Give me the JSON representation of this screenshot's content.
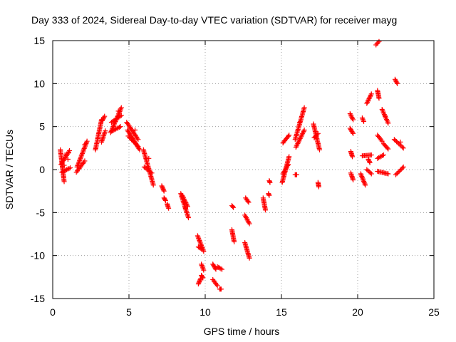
{
  "chart_data": {
    "type": "scatter",
    "title": "Day 333 of 2024, Sidereal Day-to-day VTEC variation (SDTVAR) for receiver mayg",
    "xlabel": "GPS time / hours",
    "ylabel": "SDTVAR / TECUs",
    "xlim": [
      0,
      25
    ],
    "ylim": [
      -15,
      15
    ],
    "xticks": [
      "0",
      "5",
      "10",
      "15",
      "20",
      "25"
    ],
    "yticks": [
      "-15",
      "-10",
      "-5",
      "0",
      "5",
      "10",
      "15"
    ],
    "grid": true,
    "marker": "plus",
    "series_color": "#ff0000",
    "segments": [
      {
        "x0": 0.5,
        "x1": 0.75,
        "y0": 2.3,
        "y1": -1.4
      },
      {
        "x0": 0.55,
        "x1": 1.1,
        "y0": 0.6,
        "y1": 2.2
      },
      {
        "x0": 0.6,
        "x1": 1.15,
        "y0": -0.3,
        "y1": 0.2
      },
      {
        "x0": 1.6,
        "x1": 2.25,
        "y0": 0.3,
        "y1": 3.3
      },
      {
        "x0": 1.55,
        "x1": 2.1,
        "y0": -0.3,
        "y1": 1.0
      },
      {
        "x0": 2.8,
        "x1": 3.2,
        "y0": 2.3,
        "y1": 5.8
      },
      {
        "x0": 3.25,
        "x1": 3.4,
        "y0": 5.7,
        "y1": 6.2
      },
      {
        "x0": 3.2,
        "x1": 3.45,
        "y0": 3.2,
        "y1": 4.5
      },
      {
        "x0": 3.8,
        "x1": 4.5,
        "y0": 4.3,
        "y1": 7.2
      },
      {
        "x0": 3.85,
        "x1": 4.5,
        "y0": 5.5,
        "y1": 6.3
      },
      {
        "x0": 3.9,
        "x1": 4.45,
        "y0": 4.5,
        "y1": 5.0
      },
      {
        "x0": 4.85,
        "x1": 5.6,
        "y0": 5.5,
        "y1": 3.5
      },
      {
        "x0": 4.9,
        "x1": 5.7,
        "y0": 4.6,
        "y1": 2.3
      },
      {
        "x0": 4.95,
        "x1": 5.6,
        "y0": 3.9,
        "y1": 2.7
      },
      {
        "x0": 5.95,
        "x1": 6.6,
        "y0": 2.3,
        "y1": -1.8
      },
      {
        "x0": 6.0,
        "x1": 6.5,
        "y0": 0.3,
        "y1": -0.4
      },
      {
        "x0": 7.15,
        "x1": 7.3,
        "y0": -1.9,
        "y1": -2.5
      },
      {
        "x0": 7.3,
        "x1": 7.4,
        "y0": -3.3,
        "y1": -3.6
      },
      {
        "x0": 7.5,
        "x1": 7.6,
        "y0": -4.0,
        "y1": -4.5
      },
      {
        "x0": 8.4,
        "x1": 8.9,
        "y0": -2.8,
        "y1": -5.6
      },
      {
        "x0": 8.5,
        "x1": 8.85,
        "y0": -3.0,
        "y1": -4.3
      },
      {
        "x0": 9.5,
        "x1": 9.9,
        "y0": -7.7,
        "y1": -9.5
      },
      {
        "x0": 9.55,
        "x1": 9.75,
        "y0": -9.0,
        "y1": -9.2
      },
      {
        "x0": 9.55,
        "x1": 9.7,
        "y0": -13.3,
        "y1": -12.7
      },
      {
        "x0": 9.75,
        "x1": 9.9,
        "y0": -11.0,
        "y1": -11.7
      },
      {
        "x0": 9.75,
        "x1": 9.85,
        "y0": -12.3,
        "y1": -12.6
      },
      {
        "x0": 10.5,
        "x1": 10.7,
        "y0": -11.0,
        "y1": -11.6
      },
      {
        "x0": 10.5,
        "x1": 10.8,
        "y0": -12.8,
        "y1": -13.5
      },
      {
        "x0": 10.8,
        "x1": 11.1,
        "y0": -11.3,
        "y1": -11.6
      },
      {
        "x0": 10.95,
        "x1": 11.05,
        "y0": -13.9,
        "y1": -13.9
      },
      {
        "x0": 11.75,
        "x1": 11.85,
        "y0": -4.2,
        "y1": -4.4
      },
      {
        "x0": 11.75,
        "x1": 11.9,
        "y0": -7.0,
        "y1": -8.4
      },
      {
        "x0": 12.6,
        "x1": 12.9,
        "y0": -5.3,
        "y1": -6.3
      },
      {
        "x0": 12.6,
        "x1": 12.9,
        "y0": -8.5,
        "y1": -10.3
      },
      {
        "x0": 12.65,
        "x1": 12.85,
        "y0": -3.3,
        "y1": -3.8
      },
      {
        "x0": 13.8,
        "x1": 13.95,
        "y0": -3.3,
        "y1": -4.7
      },
      {
        "x0": 14.2,
        "x1": 14.25,
        "y0": -1.3,
        "y1": -1.5
      },
      {
        "x0": 14.15,
        "x1": 14.2,
        "y0": -2.8,
        "y1": -3.0
      },
      {
        "x0": 15.05,
        "x1": 15.5,
        "y0": -1.5,
        "y1": 1.5
      },
      {
        "x0": 15.1,
        "x1": 15.5,
        "y0": 3.1,
        "y1": 4.0
      },
      {
        "x0": 15.1,
        "x1": 15.45,
        "y0": -0.5,
        "y1": 0.6
      },
      {
        "x0": 15.9,
        "x1": 16.0,
        "y0": -0.6,
        "y1": -0.6
      },
      {
        "x0": 15.9,
        "x1": 16.5,
        "y0": 3.5,
        "y1": 7.2
      },
      {
        "x0": 15.95,
        "x1": 16.5,
        "y0": 2.6,
        "y1": 4.6
      },
      {
        "x0": 17.1,
        "x1": 17.5,
        "y0": 5.3,
        "y1": 2.3
      },
      {
        "x0": 17.15,
        "x1": 17.4,
        "y0": 3.7,
        "y1": 4.2
      },
      {
        "x0": 17.4,
        "x1": 17.45,
        "y0": -1.5,
        "y1": -2.0
      },
      {
        "x0": 19.5,
        "x1": 19.7,
        "y0": 6.5,
        "y1": 5.8
      },
      {
        "x0": 19.5,
        "x1": 19.7,
        "y0": 4.8,
        "y1": 4.2
      },
      {
        "x0": 19.55,
        "x1": 19.65,
        "y0": 2.1,
        "y1": 1.5
      },
      {
        "x0": 19.55,
        "x1": 19.7,
        "y0": -0.4,
        "y1": -1.2
      },
      {
        "x0": 20.3,
        "x1": 20.4,
        "y0": 6.0,
        "y1": 5.6
      },
      {
        "x0": 20.2,
        "x1": 20.5,
        "y0": -0.5,
        "y1": -1.8
      },
      {
        "x0": 20.3,
        "x1": 20.9,
        "y0": 1.6,
        "y1": 1.7
      },
      {
        "x0": 20.6,
        "x1": 20.9,
        "y0": 7.7,
        "y1": 8.8
      },
      {
        "x0": 20.6,
        "x1": 20.9,
        "y0": 0.0,
        "y1": -0.5
      },
      {
        "x0": 20.7,
        "x1": 20.8,
        "y0": 1.2,
        "y1": 0.8
      },
      {
        "x0": 21.2,
        "x1": 21.4,
        "y0": 14.5,
        "y1": 14.9
      },
      {
        "x0": 21.3,
        "x1": 21.4,
        "y0": 9.2,
        "y1": 8.3
      },
      {
        "x0": 21.3,
        "x1": 21.6,
        "y0": 4.0,
        "y1": 3.3
      },
      {
        "x0": 21.3,
        "x1": 21.7,
        "y0": 1.3,
        "y1": 1.7
      },
      {
        "x0": 21.3,
        "x1": 22.0,
        "y0": -0.2,
        "y1": -0.5
      },
      {
        "x0": 21.6,
        "x1": 22.0,
        "y0": 7.0,
        "y1": 5.4
      },
      {
        "x0": 21.7,
        "x1": 22.0,
        "y0": 3.0,
        "y1": 2.4
      },
      {
        "x0": 22.45,
        "x1": 22.6,
        "y0": 10.5,
        "y1": 10.0
      },
      {
        "x0": 22.4,
        "x1": 23.0,
        "y0": 3.5,
        "y1": 2.5
      },
      {
        "x0": 22.5,
        "x1": 23.0,
        "y0": -0.6,
        "y1": 0.3
      }
    ],
    "extra_points": [
      {
        "x": 0.8,
        "y": 1.7
      },
      {
        "x": 1.0,
        "y": 1.2
      },
      {
        "x": 1.05,
        "y": 2.0
      },
      {
        "x": 0.75,
        "y": 0.5
      },
      {
        "x": 2.1,
        "y": 2.9
      },
      {
        "x": 4.3,
        "y": 6.8
      },
      {
        "x": 5.4,
        "y": 4.6
      },
      {
        "x": 6.3,
        "y": 1.3
      },
      {
        "x": 8.7,
        "y": -4.5
      },
      {
        "x": 15.3,
        "y": 0.2
      },
      {
        "x": 16.2,
        "y": 5.5
      },
      {
        "x": 21.8,
        "y": 6.2
      },
      {
        "x": 22.8,
        "y": 3.2
      }
    ]
  }
}
